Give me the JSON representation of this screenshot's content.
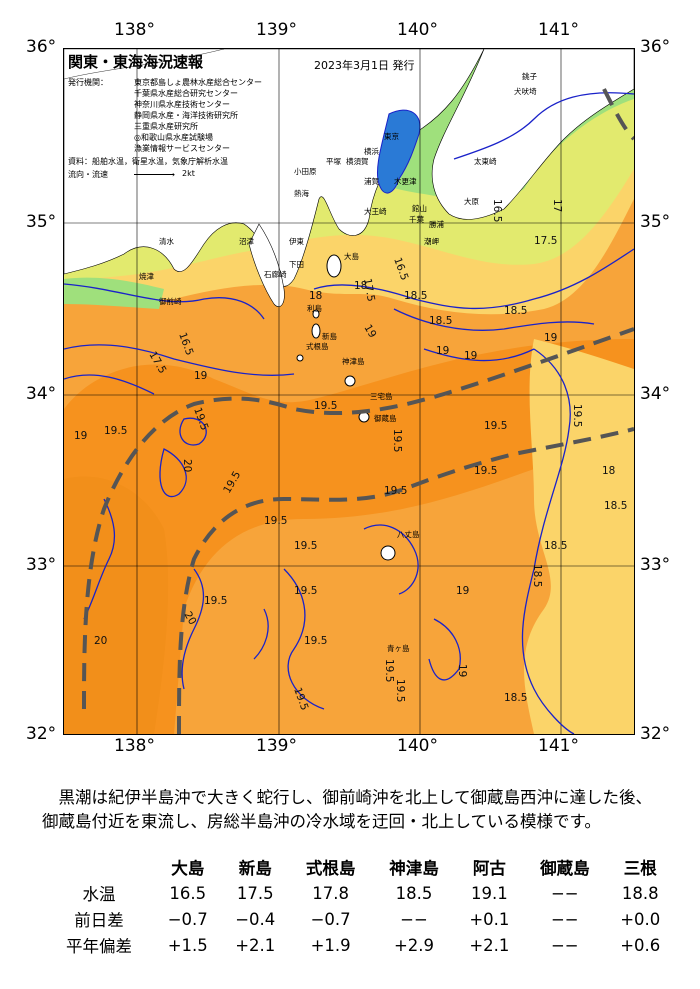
{
  "map": {
    "title": "関東・東海海況速報",
    "date": "2023年3月1日 発行",
    "issuer_label": "発行機関：",
    "issuers": [
      "東京都島しょ農林水産総合センター",
      "千葉県水産総合研究センター",
      "神奈川県水産技術センター",
      "静岡県水産・海洋技術研究所",
      "三重県水産研究所",
      "◎和歌山県水産試験場",
      "漁業情報サービスセンター"
    ],
    "source_label": "資料：",
    "source": "船舶水温，衛星水温，気象庁解析水温",
    "legend_label": "流向・流速",
    "legend_scale": "2kt",
    "longitudes": [
      "138°",
      "139°",
      "140°",
      "141°"
    ],
    "latitudes": [
      "36°",
      "35°",
      "34°",
      "33°",
      "32°"
    ],
    "temperature_labels": [
      "16.5",
      "17",
      "17.5",
      "18",
      "18.5",
      "19",
      "19.5",
      "20"
    ],
    "place_names": [
      "大島",
      "新島",
      "式根島",
      "神津島",
      "三宅島",
      "御蔵島",
      "八丈島",
      "青ヶ島",
      "利島",
      "千葉",
      "銚子",
      "館山",
      "勝浦",
      "大原",
      "太東崎",
      "犬吠埼",
      "平塚",
      "横須賀",
      "横浜",
      "東京",
      "木更津",
      "浦賀",
      "小田原",
      "熱海",
      "伊東",
      "下田",
      "石廊崎",
      "御前崎",
      "焼津",
      "清水",
      "沼津",
      "大王崎",
      "潮岬"
    ],
    "colors": {
      "kuroshio": "#f6921e",
      "warm": "#f7a43a",
      "mild": "#fbd469",
      "cool": "#e2ea6e",
      "cold": "#9fe07c",
      "bay": "#7fd6c4",
      "inner_bay": "#2a7ad6",
      "land": "#ffffff",
      "isotherm": "#1a22c9",
      "axis_line": "#555555"
    }
  },
  "summary": "黒潮は紀伊半島沖で大きく蛇行し、御前崎沖を北上して御蔵島西沖に達した後、御蔵島付近を東流し、房総半島沖の冷水域を迂回・北上している模様です。",
  "table": {
    "headers": [
      "",
      "大島",
      "新島",
      "式根島",
      "神津島",
      "阿古",
      "御蔵島",
      "三根"
    ],
    "rows": [
      {
        "label": "水温",
        "values": [
          "16.5",
          "17.5",
          "17.8",
          "18.5",
          "19.1",
          "−−",
          "18.8"
        ]
      },
      {
        "label": "前日差",
        "values": [
          "−0.7",
          "−0.4",
          "−0.7",
          "−−",
          "+0.1",
          "−−",
          "+0.0"
        ]
      },
      {
        "label": "平年偏差",
        "values": [
          "+1.5",
          "+2.1",
          "+1.9",
          "+2.9",
          "+2.1",
          "−−",
          "+0.6"
        ]
      }
    ]
  }
}
